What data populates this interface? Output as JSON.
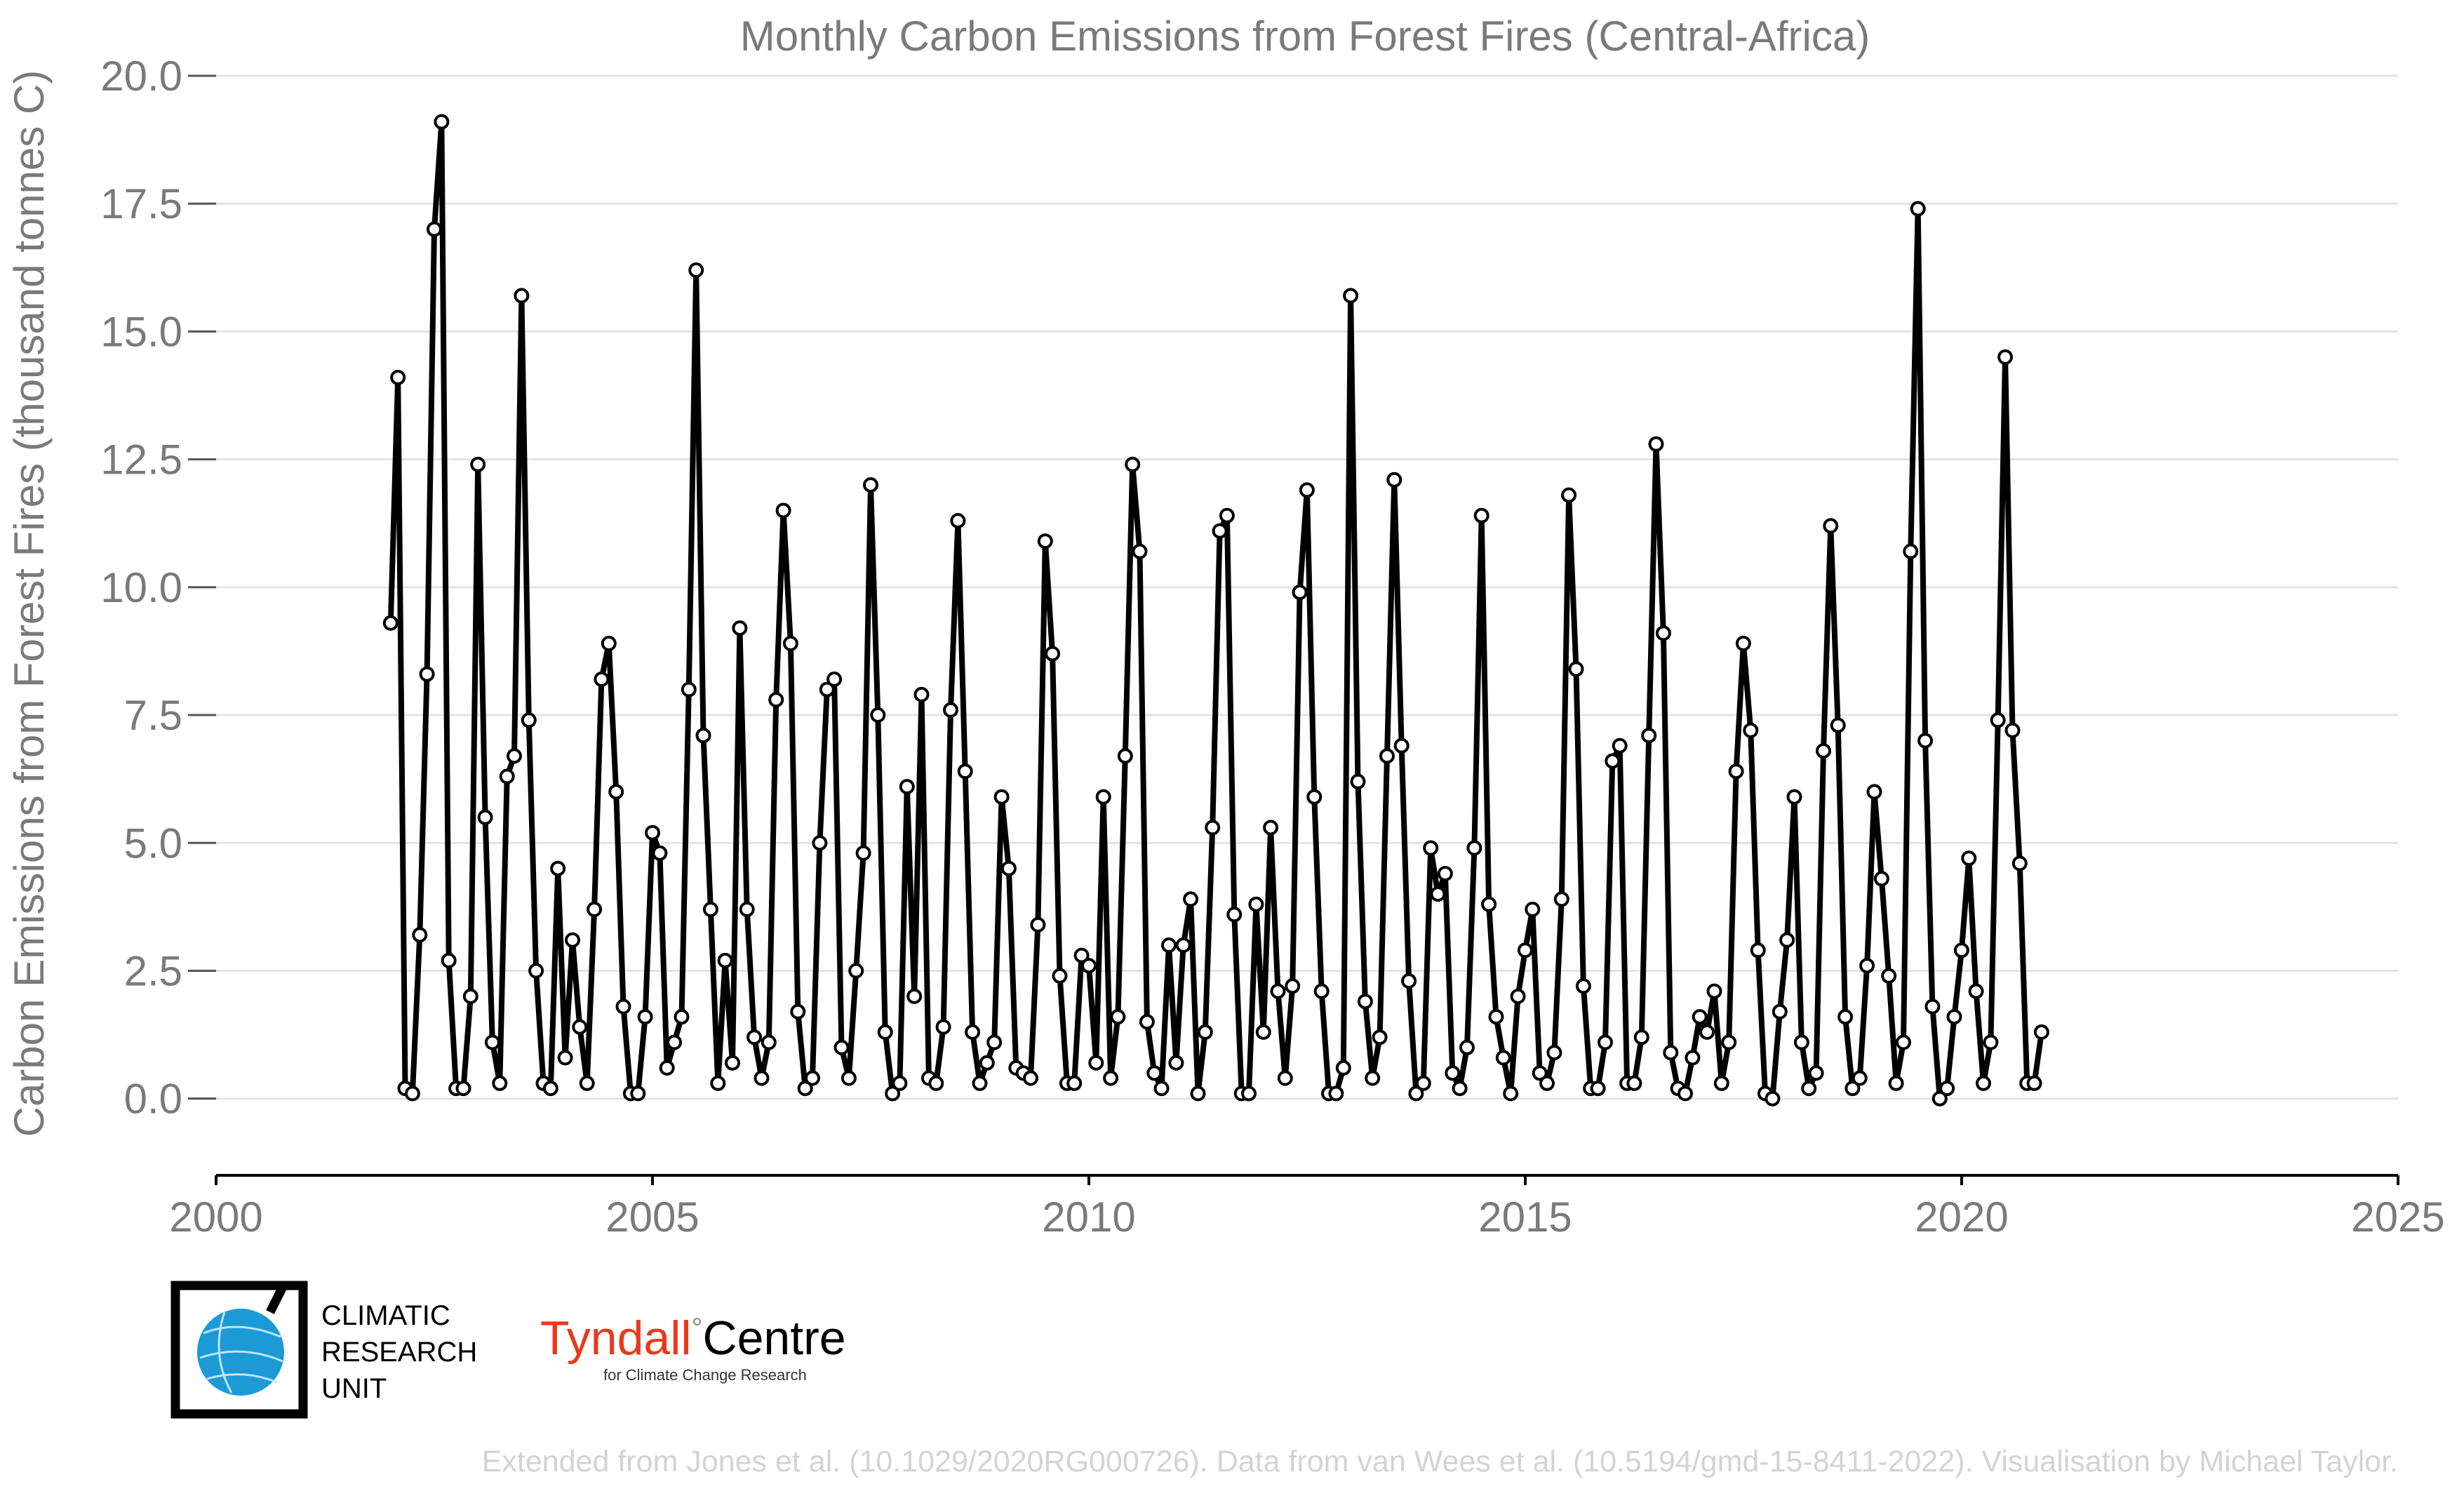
{
  "chart_data": {
    "type": "line",
    "title": "Monthly Carbon Emissions from Forest Fires (Central-Africa)",
    "ylabel": "Carbon Emissions from Forest Fires (thousand tonnes C)",
    "xlabel": "",
    "xlim": [
      2000,
      2025
    ],
    "ylim": [
      -1.5,
      20.0
    ],
    "x_ticks": [
      2000,
      2005,
      2010,
      2015,
      2020,
      2025
    ],
    "x_tick_labels": [
      "2000",
      "2005",
      "2010",
      "2015",
      "2020",
      "2025"
    ],
    "y_ticks": [
      0.0,
      2.5,
      5.0,
      7.5,
      10.0,
      12.5,
      15.0,
      17.5,
      20.0
    ],
    "y_tick_labels": [
      "0.0",
      "2.5",
      "5.0",
      "7.5",
      "10.0",
      "12.5",
      "15.0",
      "17.5",
      "20.0"
    ],
    "grid": "horizontal",
    "line_color": "#000000",
    "x_start": 2002.0,
    "x_step": 0.08333,
    "series": [
      {
        "values": [
          9.3,
          14.1,
          0.2,
          0.1,
          3.2,
          8.3,
          17.0,
          19.1,
          2.7,
          0.2,
          0.2,
          2.0,
          12.4,
          5.5,
          1.1,
          0.3,
          6.3,
          6.7,
          15.7,
          7.4,
          2.5,
          0.3,
          0.2,
          4.5,
          0.8,
          3.1,
          1.4,
          0.3,
          3.7,
          8.2,
          8.9,
          6.0,
          1.8,
          0.1,
          0.1,
          1.6,
          5.2,
          4.8,
          0.6,
          1.1,
          1.6,
          8.0,
          16.2,
          7.1,
          3.7,
          0.3,
          2.7,
          0.7,
          9.2,
          3.7,
          1.2,
          0.4,
          1.1,
          7.8,
          11.5,
          8.9,
          1.7,
          0.2,
          0.4,
          5.0,
          8.0,
          8.2,
          1.0,
          0.4,
          2.5,
          4.8,
          12.0,
          7.5,
          1.3,
          0.1,
          0.3,
          6.1,
          2.0,
          7.9,
          0.4,
          0.3,
          1.4,
          7.6,
          11.3,
          6.4,
          1.3,
          0.3,
          0.7,
          1.1,
          5.9,
          4.5,
          0.6,
          0.5,
          0.4,
          3.4,
          10.9,
          8.7,
          2.4,
          0.3,
          0.3,
          2.8,
          2.6,
          0.7,
          5.9,
          0.4,
          1.6,
          6.7,
          12.4,
          10.7,
          1.5,
          0.5,
          0.2,
          3.0,
          0.7,
          3.0,
          3.9,
          0.1,
          1.3,
          5.3,
          11.1,
          11.4,
          3.6,
          0.1,
          0.1,
          3.8,
          1.3,
          5.3,
          2.1,
          0.4,
          2.2,
          9.9,
          11.9,
          5.9,
          2.1,
          0.1,
          0.1,
          0.6,
          15.7,
          6.2,
          1.9,
          0.4,
          1.2,
          6.7,
          12.1,
          6.9,
          2.3,
          0.1,
          0.3,
          4.9,
          4.0,
          4.4,
          0.5,
          0.2,
          1.0,
          4.9,
          11.4,
          3.8,
          1.6,
          0.8,
          0.1,
          2.0,
          2.9,
          3.7,
          0.5,
          0.3,
          0.9,
          3.9,
          11.8,
          8.4,
          2.2,
          0.2,
          0.2,
          1.1,
          6.6,
          6.9,
          0.3,
          0.3,
          1.2,
          7.1,
          12.8,
          9.1,
          0.9,
          0.2,
          0.1,
          0.8,
          1.6,
          1.3,
          2.1,
          0.3,
          1.1,
          6.4,
          8.9,
          7.2,
          2.9,
          0.1,
          0.0,
          1.7,
          3.1,
          5.9,
          1.1,
          0.2,
          0.5,
          6.8,
          11.2,
          7.3,
          1.6,
          0.2,
          0.4,
          2.6,
          6.0,
          4.3,
          2.4,
          0.3,
          1.1,
          10.7,
          17.4,
          7.0,
          1.8,
          0.0,
          0.2,
          1.6,
          2.9,
          4.7,
          2.1,
          0.3,
          1.1,
          7.4,
          14.5,
          7.2,
          4.6,
          0.3,
          0.3,
          1.3
        ]
      }
    ]
  },
  "logos": {
    "cru_lines": [
      "CLIMATIC",
      "RESEARCH",
      "UNIT"
    ],
    "tyndall_name": "Tyndall",
    "tyndall_degree": "°",
    "tyndall_centre": "Centre",
    "tyndall_sub": "for Climate Change Research",
    "cru_color": "#1b9ad6",
    "tyndall_red": "#e8391d"
  },
  "credit": "Extended from Jones et al. (10.1029/2020RG000726). Data from van Wees et al. (10.5194/gmd-15-8411-2022). Visualisation by Michael Taylor."
}
